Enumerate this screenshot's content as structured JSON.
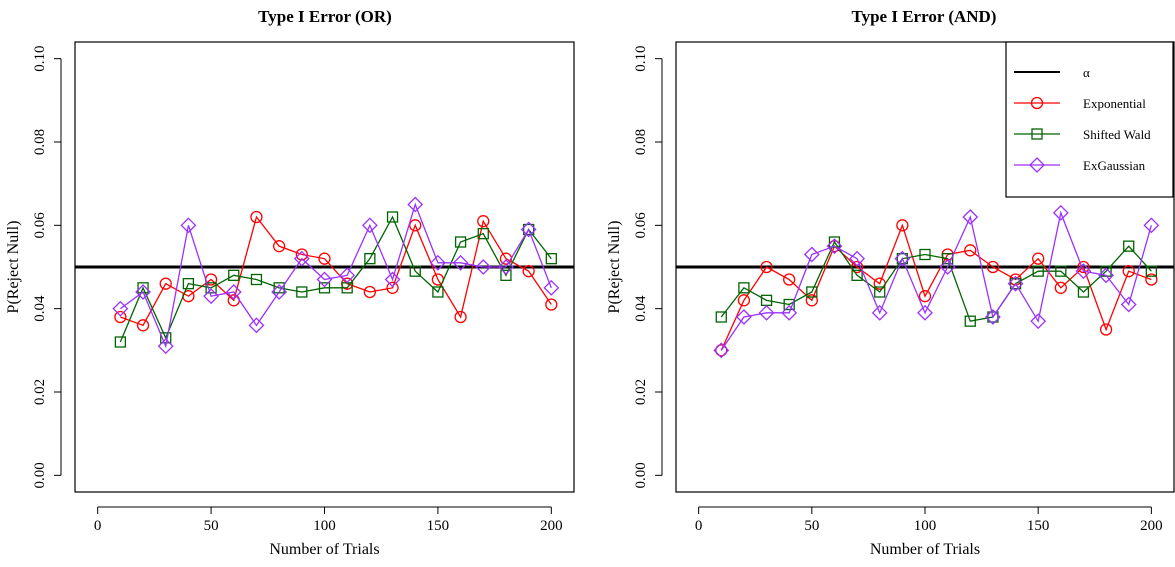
{
  "chart_data": [
    {
      "type": "line",
      "title": "Type I Error (OR)",
      "xlabel": "Number of Trials",
      "ylabel": "P(Reject Null)",
      "xlim": [
        -10,
        210
      ],
      "ylim": [
        -0.004,
        0.104
      ],
      "x_ticks": [
        "0",
        "50",
        "100",
        "150",
        "200"
      ],
      "y_ticks": [
        "0.00",
        "0.02",
        "0.04",
        "0.06",
        "0.08",
        "0.10"
      ],
      "reference_line": {
        "label": "α",
        "value": 0.05,
        "color": "#000000"
      },
      "x": [
        10,
        20,
        30,
        40,
        50,
        60,
        70,
        80,
        90,
        100,
        110,
        120,
        130,
        140,
        150,
        160,
        170,
        180,
        190,
        200
      ],
      "series": [
        {
          "name": "Exponential",
          "color": "#ff0000",
          "marker": "circle",
          "values": [
            0.038,
            0.036,
            0.046,
            0.043,
            0.047,
            0.042,
            0.062,
            0.055,
            0.053,
            0.052,
            0.046,
            0.044,
            0.045,
            0.06,
            0.047,
            0.038,
            0.061,
            0.052,
            0.049,
            0.041
          ]
        },
        {
          "name": "Shifted Wald",
          "color": "#006400",
          "marker": "square",
          "values": [
            0.032,
            0.045,
            0.033,
            0.046,
            0.045,
            0.048,
            0.047,
            0.045,
            0.044,
            0.045,
            0.045,
            0.052,
            0.062,
            0.049,
            0.044,
            0.056,
            0.058,
            0.048,
            0.059,
            0.052
          ]
        },
        {
          "name": "ExGaussian",
          "color": "#9b30ff",
          "marker": "diamond",
          "values": [
            0.04,
            0.044,
            0.031,
            0.06,
            0.043,
            0.044,
            0.036,
            0.044,
            0.052,
            0.047,
            0.048,
            0.06,
            0.047,
            0.065,
            0.051,
            0.051,
            0.05,
            0.05,
            0.059,
            0.045
          ]
        }
      ],
      "legend": "none",
      "grid": false
    },
    {
      "type": "line",
      "title": "Type I Error (AND)",
      "xlabel": "Number of Trials",
      "ylabel": "P(Reject Null)",
      "xlim": [
        -10,
        210
      ],
      "ylim": [
        -0.004,
        0.104
      ],
      "x_ticks": [
        "0",
        "50",
        "100",
        "150",
        "200"
      ],
      "y_ticks": [
        "0.00",
        "0.02",
        "0.04",
        "0.06",
        "0.08",
        "0.10"
      ],
      "reference_line": {
        "label": "α",
        "value": 0.05,
        "color": "#000000"
      },
      "x": [
        10,
        20,
        30,
        40,
        50,
        60,
        70,
        80,
        90,
        100,
        110,
        120,
        130,
        140,
        150,
        160,
        170,
        180,
        190,
        200
      ],
      "series": [
        {
          "name": "Exponential",
          "color": "#ff0000",
          "marker": "circle",
          "values": [
            0.03,
            0.042,
            0.05,
            0.047,
            0.042,
            0.055,
            0.05,
            0.046,
            0.06,
            0.043,
            0.053,
            0.054,
            0.05,
            0.047,
            0.052,
            0.045,
            0.05,
            0.035,
            0.049,
            0.047
          ]
        },
        {
          "name": "Shifted Wald",
          "color": "#006400",
          "marker": "square",
          "values": [
            0.038,
            0.045,
            0.042,
            0.041,
            0.044,
            0.056,
            0.048,
            0.044,
            0.052,
            0.053,
            0.052,
            0.037,
            0.038,
            0.046,
            0.049,
            0.049,
            0.044,
            0.049,
            0.055,
            0.049
          ]
        },
        {
          "name": "ExGaussian",
          "color": "#9b30ff",
          "marker": "diamond",
          "values": [
            0.03,
            0.038,
            0.039,
            0.039,
            0.053,
            0.055,
            0.052,
            0.039,
            0.052,
            0.039,
            0.05,
            0.062,
            0.038,
            0.046,
            0.037,
            0.063,
            0.049,
            0.048,
            0.041,
            0.06
          ]
        }
      ],
      "legend": "top-right",
      "grid": false
    }
  ]
}
